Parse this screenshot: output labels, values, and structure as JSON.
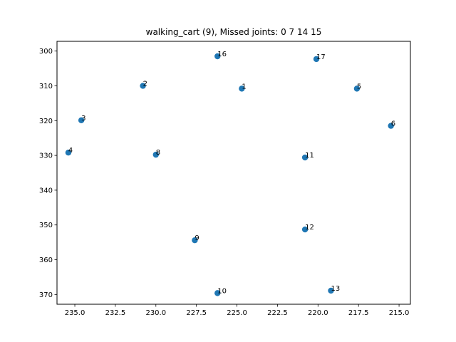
{
  "chart_data": {
    "type": "scatter",
    "title": "walking_cart (9), Missed joints: 0 7 14 15",
    "xlabel": "",
    "ylabel": "",
    "xlim": [
      236.1,
      214.3
    ],
    "ylim": [
      372.8,
      297.2
    ],
    "x_inverted": true,
    "y_inverted": true,
    "grid": false,
    "marker_color": "#1f77b4",
    "x_ticks": [
      235.0,
      232.5,
      230.0,
      227.5,
      225.0,
      222.5,
      220.0,
      217.5,
      215.0
    ],
    "x_tick_labels": [
      "235.0",
      "232.5",
      "230.0",
      "227.5",
      "225.0",
      "222.5",
      "220.0",
      "217.5",
      "215.0"
    ],
    "y_ticks": [
      300,
      310,
      320,
      330,
      340,
      350,
      360,
      370
    ],
    "y_tick_labels": [
      "300",
      "310",
      "320",
      "330",
      "340",
      "350",
      "360",
      "370"
    ],
    "points": [
      {
        "label": "1",
        "x": 224.7,
        "y": 310.8
      },
      {
        "label": "2",
        "x": 230.8,
        "y": 310.0
      },
      {
        "label": "3",
        "x": 234.6,
        "y": 319.9
      },
      {
        "label": "4",
        "x": 235.4,
        "y": 329.2
      },
      {
        "label": "5",
        "x": 217.6,
        "y": 310.8
      },
      {
        "label": "6",
        "x": 215.5,
        "y": 321.5
      },
      {
        "label": "8",
        "x": 230.0,
        "y": 329.8
      },
      {
        "label": "9",
        "x": 227.6,
        "y": 354.4
      },
      {
        "label": "10",
        "x": 226.2,
        "y": 369.6
      },
      {
        "label": "11",
        "x": 220.8,
        "y": 330.6
      },
      {
        "label": "12",
        "x": 220.8,
        "y": 351.3
      },
      {
        "label": "13",
        "x": 219.2,
        "y": 368.9
      },
      {
        "label": "16",
        "x": 226.2,
        "y": 301.5
      },
      {
        "label": "17",
        "x": 220.1,
        "y": 302.3
      }
    ]
  }
}
